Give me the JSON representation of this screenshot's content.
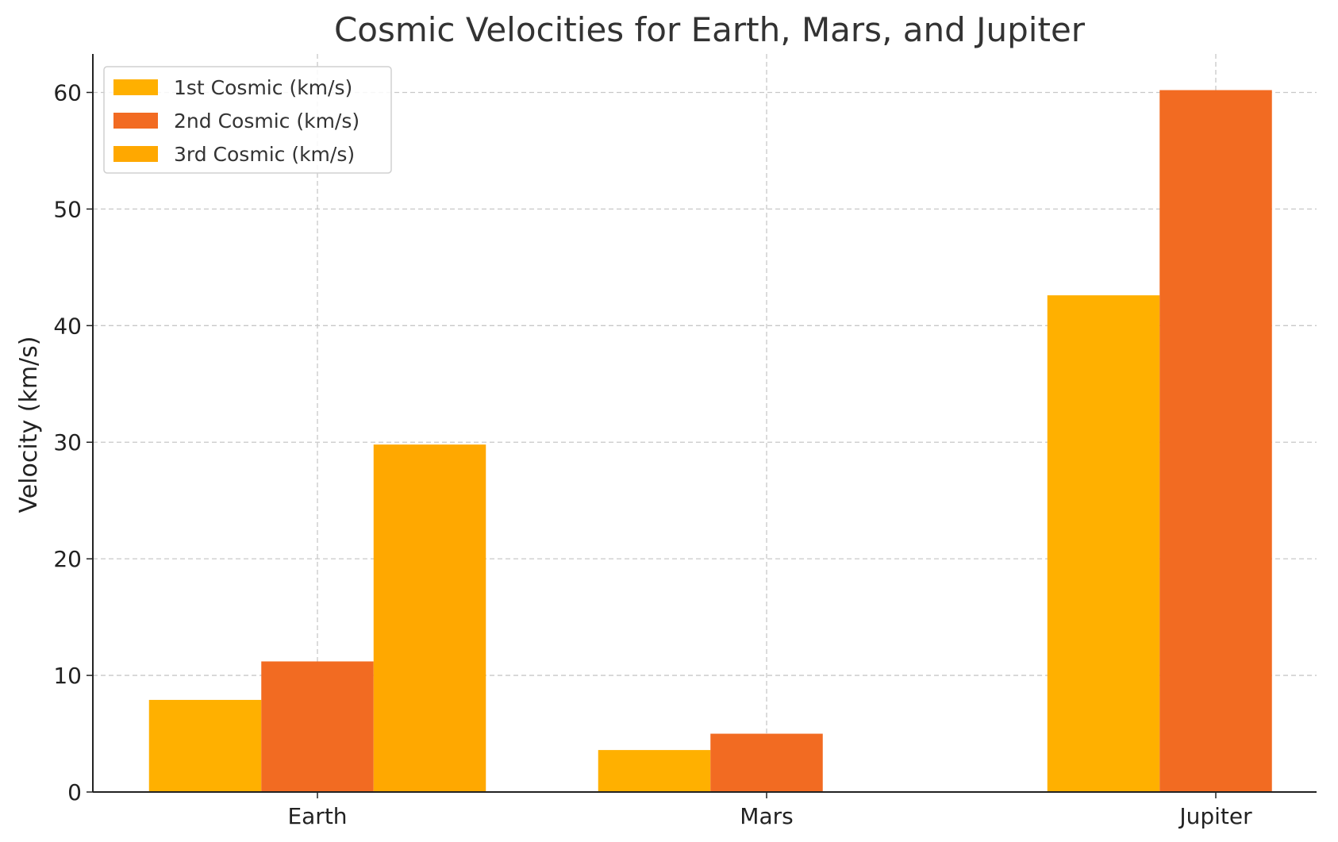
{
  "chart_data": {
    "type": "bar",
    "title": "Cosmic Velocities for Earth, Mars, and Jupiter",
    "xlabel": "",
    "ylabel": "Velocity (km/s)",
    "categories": [
      "Earth",
      "Mars",
      "Jupiter"
    ],
    "series": [
      {
        "name": "1st Cosmic (km/s)",
        "values": [
          7.9,
          3.6,
          42.6
        ],
        "color": "#FFB000"
      },
      {
        "name": "2nd Cosmic (km/s)",
        "values": [
          11.2,
          5.0,
          60.2
        ],
        "color": "#F26B22"
      },
      {
        "name": "3rd Cosmic (km/s)",
        "values": [
          29.8,
          null,
          null
        ],
        "color": "#FFA800"
      }
    ],
    "ylim": [
      0,
      63.3
    ],
    "yticks": [
      "0",
      "10",
      "20",
      "30",
      "40",
      "50",
      "60"
    ],
    "grid": true,
    "legend_position": "top-left"
  }
}
